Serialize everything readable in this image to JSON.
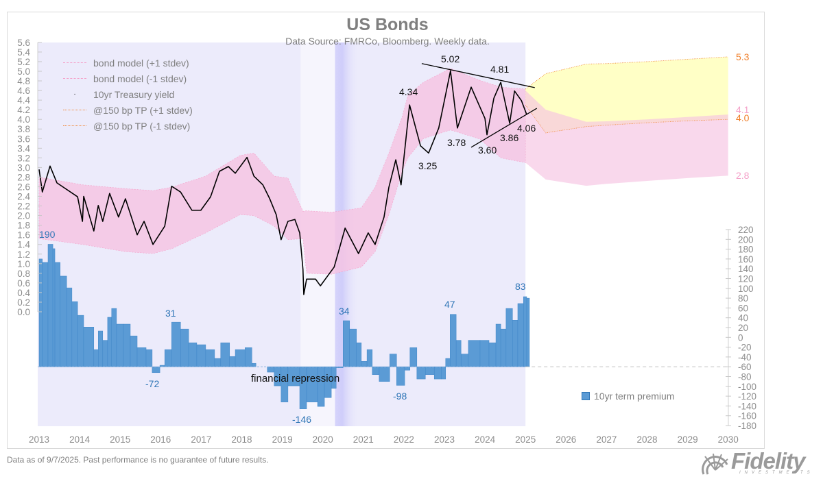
{
  "title": "US Bonds",
  "subtitle": "Data Source: FMRCo, Bloomberg.  Weekly data.",
  "footer": "Data as of 9/7/2025. Past performance is no guarantee of future results.",
  "logo": {
    "text": "Fidelity",
    "sub": "INVESTMENTS"
  },
  "colors": {
    "yield": "#000000",
    "model_band": "#f6c3e2",
    "tp_band": "#ffffc0",
    "term_premium": "#5b9bd5",
    "tp_line": "#f08a3c",
    "model_line": "#f4a0c8",
    "shade": "#ecebfb"
  },
  "legend": {
    "items": [
      "bond model (+1 stdev)",
      "bond model (-1 stdev)",
      "10yr Treasury yield",
      "@150 bp TP (+1 stdev)",
      "@150 bp TP (-1 stdev)"
    ],
    "term_premium": "10yr term premium"
  },
  "annotations": {
    "yield": [
      "5.02",
      "4.81",
      "4.34",
      "3.25",
      "3.78",
      "3.60",
      "3.86",
      "4.06"
    ],
    "tp": [
      "190",
      "31",
      "-72",
      "-146",
      "34",
      "-98",
      "47",
      "83"
    ],
    "financial_repression": "financial repression",
    "end_labels": {
      "tp_upper": "5.3",
      "model_upper": "4.1",
      "tp_lower": "4.0",
      "model_lower": "2.8"
    }
  },
  "chart_data": {
    "type": "line+bar",
    "title": "US Bonds",
    "x_ticks": [
      "2013",
      "2014",
      "2015",
      "2016",
      "2017",
      "2018",
      "2019",
      "2020",
      "2021",
      "2022",
      "2023",
      "2024",
      "2025",
      "2026",
      "2027",
      "2028",
      "2029",
      "2030"
    ],
    "xlim": [
      2013,
      2030
    ],
    "y_left": {
      "lim": [
        0,
        5.6
      ],
      "ticks": [
        "0.0",
        "0.2",
        "0.4",
        "0.6",
        "0.8",
        "1.0",
        "1.2",
        "1.4",
        "1.6",
        "1.8",
        "2.0",
        "2.2",
        "2.4",
        "2.6",
        "2.8",
        "3.0",
        "3.2",
        "3.4",
        "3.6",
        "3.8",
        "4.0",
        "4.2",
        "4.4",
        "4.6",
        "4.8",
        "5.0",
        "5.2",
        "5.4",
        "5.6"
      ]
    },
    "y_right": {
      "lim": [
        -180,
        220
      ],
      "ticks": [
        "-180",
        "-160",
        "-140",
        "-120",
        "-100",
        "-80",
        "-60",
        "-40",
        "-20",
        "0",
        "20",
        "40",
        "60",
        "80",
        "100",
        "120",
        "140",
        "160",
        "180",
        "200",
        "220"
      ],
      "bar_baseline": -60
    },
    "yield": [
      [
        2013.0,
        2.96
      ],
      [
        2013.08,
        2.49
      ],
      [
        2013.27,
        3.03
      ],
      [
        2013.44,
        2.68
      ],
      [
        2013.95,
        2.39
      ],
      [
        2014.07,
        1.88
      ],
      [
        2014.1,
        2.4
      ],
      [
        2014.35,
        1.68
      ],
      [
        2014.46,
        2.21
      ],
      [
        2014.57,
        1.88
      ],
      [
        2014.74,
        2.46
      ],
      [
        2014.96,
        1.97
      ],
      [
        2015.13,
        2.35
      ],
      [
        2015.42,
        1.6
      ],
      [
        2015.59,
        1.88
      ],
      [
        2015.81,
        1.4
      ],
      [
        2016.1,
        1.78
      ],
      [
        2016.27,
        2.61
      ],
      [
        2016.49,
        2.49
      ],
      [
        2016.77,
        2.11
      ],
      [
        2016.99,
        2.11
      ],
      [
        2017.23,
        2.39
      ],
      [
        2017.45,
        2.92
      ],
      [
        2017.67,
        3.02
      ],
      [
        2017.84,
        2.88
      ],
      [
        2018.13,
        3.21
      ],
      [
        2018.3,
        2.82
      ],
      [
        2018.52,
        2.64
      ],
      [
        2018.69,
        2.35
      ],
      [
        2018.85,
        2.02
      ],
      [
        2018.97,
        1.5
      ],
      [
        2019.14,
        1.88
      ],
      [
        2019.31,
        1.92
      ],
      [
        2019.43,
        1.64
      ],
      [
        2019.51,
        0.88
      ],
      [
        2019.53,
        0.36
      ],
      [
        2019.6,
        0.68
      ],
      [
        2019.82,
        0.68
      ],
      [
        2019.94,
        0.54
      ],
      [
        2020.28,
        0.93
      ],
      [
        2020.55,
        1.74
      ],
      [
        2020.88,
        1.21
      ],
      [
        2021.12,
        1.64
      ],
      [
        2021.29,
        1.4
      ],
      [
        2021.51,
        1.97
      ],
      [
        2021.63,
        2.59
      ],
      [
        2021.8,
        3.16
      ],
      [
        2021.93,
        2.64
      ],
      [
        2022.14,
        4.3
      ],
      [
        2022.41,
        3.45
      ],
      [
        2022.61,
        3.3
      ],
      [
        2022.86,
        3.82
      ],
      [
        2023.15,
        5.01
      ],
      [
        2023.32,
        3.82
      ],
      [
        2023.66,
        4.67
      ],
      [
        2024.0,
        4.02
      ],
      [
        2024.05,
        3.68
      ],
      [
        2024.22,
        4.44
      ],
      [
        2024.39,
        4.77
      ],
      [
        2024.61,
        3.92
      ],
      [
        2024.73,
        4.59
      ],
      [
        2024.9,
        4.39
      ],
      [
        2025.03,
        4.1
      ]
    ],
    "model_band": [
      [
        2013.0,
        2.8,
        1.52
      ],
      [
        2014.07,
        2.64,
        1.4
      ],
      [
        2015.13,
        2.56,
        1.25
      ],
      [
        2015.81,
        2.52,
        1.21
      ],
      [
        2016.27,
        2.59,
        1.31
      ],
      [
        2017.11,
        2.82,
        1.64
      ],
      [
        2017.96,
        3.25,
        2.02
      ],
      [
        2018.3,
        3.3,
        2.0
      ],
      [
        2018.8,
        2.82,
        1.78
      ],
      [
        2019.14,
        2.78,
        1.5
      ],
      [
        2019.51,
        2.09,
        1.52
      ],
      [
        2019.6,
        2.1,
        0.8
      ],
      [
        2020.21,
        2.07,
        0.78
      ],
      [
        2020.95,
        2.16,
        0.93
      ],
      [
        2021.29,
        2.59,
        1.25
      ],
      [
        2021.63,
        3.3,
        2.02
      ],
      [
        2021.96,
        4.06,
        2.92
      ],
      [
        2022.1,
        4.5,
        3.2
      ],
      [
        2022.48,
        4.77,
        3.6
      ],
      [
        2023.15,
        5.06,
        3.78
      ],
      [
        2023.88,
        4.81,
        3.59
      ],
      [
        2024.39,
        4.67,
        3.2
      ],
      [
        2025.0,
        4.63,
        3.1
      ]
    ],
    "projection": {
      "years": [
        2025.0,
        2025.5,
        2026.5,
        2027.0,
        2028.0,
        2029.0,
        2030.0
      ],
      "tp_upper": [
        4.63,
        4.95,
        5.15,
        5.16,
        5.2,
        5.25,
        5.3
      ],
      "tp_lower": [
        4.3,
        3.72,
        3.85,
        3.88,
        3.93,
        3.97,
        4.0
      ],
      "model_upper": [
        4.6,
        4.2,
        3.95,
        3.96,
        4.0,
        4.05,
        4.1
      ],
      "model_lower": [
        3.1,
        2.75,
        2.62,
        2.66,
        2.72,
        2.78,
        2.83
      ]
    },
    "trendlines": [
      [
        [
          2022.44,
          5.16
        ],
        [
          2025.23,
          4.66
        ]
      ],
      [
        [
          2023.66,
          3.42
        ],
        [
          2025.28,
          4.23
        ]
      ]
    ],
    "term_premium": [
      [
        2013.0,
        160
      ],
      [
        2013.08,
        153
      ],
      [
        2013.22,
        190
      ],
      [
        2013.34,
        181
      ],
      [
        2013.39,
        153
      ],
      [
        2013.52,
        125
      ],
      [
        2013.68,
        101
      ],
      [
        2013.81,
        73
      ],
      [
        2013.95,
        45
      ],
      [
        2014.1,
        21
      ],
      [
        2014.35,
        -25
      ],
      [
        2014.46,
        13
      ],
      [
        2014.57,
        -6
      ],
      [
        2014.69,
        41
      ],
      [
        2014.79,
        59
      ],
      [
        2014.91,
        27
      ],
      [
        2015.08,
        27
      ],
      [
        2015.25,
        3
      ],
      [
        2015.42,
        -21
      ],
      [
        2015.64,
        -25
      ],
      [
        2015.79,
        -72
      ],
      [
        2015.98,
        -57
      ],
      [
        2016.1,
        -25
      ],
      [
        2016.27,
        31
      ],
      [
        2016.49,
        17
      ],
      [
        2016.69,
        -11
      ],
      [
        2016.89,
        -15
      ],
      [
        2017.11,
        -25
      ],
      [
        2017.33,
        -43
      ],
      [
        2017.48,
        -11
      ],
      [
        2017.7,
        -39
      ],
      [
        2017.84,
        -25
      ],
      [
        2018.08,
        -21
      ],
      [
        2018.25,
        -53
      ],
      [
        2018.35,
        -60
      ],
      [
        2018.63,
        -71
      ],
      [
        2018.8,
        -99
      ],
      [
        2018.97,
        -132
      ],
      [
        2019.14,
        -99
      ],
      [
        2019.43,
        -146
      ],
      [
        2019.6,
        -132
      ],
      [
        2019.87,
        -141
      ],
      [
        2020.04,
        -123
      ],
      [
        2020.21,
        -104
      ],
      [
        2020.33,
        -62
      ],
      [
        2020.5,
        34
      ],
      [
        2020.66,
        17
      ],
      [
        2020.83,
        -11
      ],
      [
        2020.95,
        -49
      ],
      [
        2021.09,
        -25
      ],
      [
        2021.22,
        -76
      ],
      [
        2021.39,
        -90
      ],
      [
        2021.65,
        -34
      ],
      [
        2021.82,
        -98
      ],
      [
        2022.02,
        -67
      ],
      [
        2022.15,
        -21
      ],
      [
        2022.32,
        -85
      ],
      [
        2022.53,
        -76
      ],
      [
        2022.75,
        -85
      ],
      [
        2022.92,
        -85
      ],
      [
        2023.03,
        -43
      ],
      [
        2023.14,
        47
      ],
      [
        2023.29,
        -6
      ],
      [
        2023.41,
        -34
      ],
      [
        2023.59,
        -6
      ],
      [
        2023.88,
        -6
      ],
      [
        2024.1,
        -11
      ],
      [
        2024.27,
        27
      ],
      [
        2024.39,
        17
      ],
      [
        2024.52,
        59
      ],
      [
        2024.68,
        35
      ],
      [
        2024.81,
        69
      ],
      [
        2024.95,
        83
      ],
      [
        2025.03,
        80
      ]
    ],
    "grid": false,
    "legend_position": "top-left"
  }
}
